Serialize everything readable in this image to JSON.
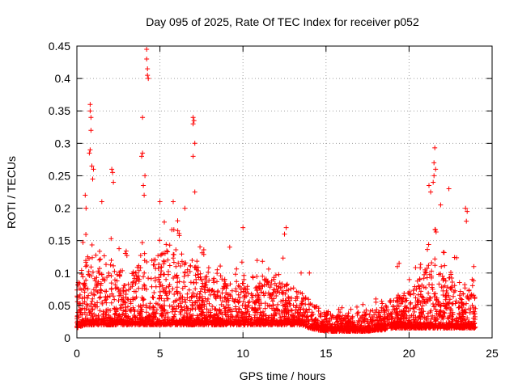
{
  "chart_data": {
    "type": "scatter",
    "title": "Day 095 of 2025, Rate Of TEC Index for receiver p052",
    "xlabel": "GPS time / hours",
    "ylabel": "ROTI / TECUs",
    "xlim": [
      0,
      25
    ],
    "ylim": [
      0,
      0.45
    ],
    "xticks": [
      "0",
      "5",
      "10",
      "15",
      "20",
      "25"
    ],
    "yticks": [
      "0",
      "0.05",
      "0.1",
      "0.15",
      "0.2",
      "0.25",
      "0.3",
      "0.35",
      "0.4",
      "0.45"
    ],
    "grid": true,
    "marker": "+",
    "series_color": "#ff0000",
    "envelope": {
      "hours": [
        0.0,
        0.5,
        1.0,
        1.5,
        2.0,
        2.5,
        3.0,
        3.5,
        4.0,
        4.5,
        5.0,
        5.5,
        6.0,
        6.5,
        7.0,
        7.5,
        8.0,
        8.5,
        9.0,
        9.5,
        10.0,
        10.5,
        11.0,
        11.5,
        12.0,
        12.5,
        13.0,
        13.5,
        14.0,
        14.5,
        15.0,
        15.5,
        16.0,
        16.5,
        17.0,
        17.5,
        18.0,
        18.5,
        19.0,
        19.5,
        20.0,
        20.5,
        21.0,
        21.5,
        22.0,
        22.5,
        23.0,
        23.5,
        24.0
      ],
      "typical_max": [
        0.09,
        0.12,
        0.14,
        0.12,
        0.13,
        0.11,
        0.1,
        0.11,
        0.12,
        0.12,
        0.13,
        0.14,
        0.14,
        0.13,
        0.12,
        0.11,
        0.11,
        0.1,
        0.09,
        0.09,
        0.1,
        0.1,
        0.1,
        0.09,
        0.1,
        0.09,
        0.08,
        0.07,
        0.06,
        0.05,
        0.04,
        0.035,
        0.035,
        0.035,
        0.04,
        0.04,
        0.045,
        0.05,
        0.06,
        0.07,
        0.07,
        0.09,
        0.11,
        0.13,
        0.12,
        0.1,
        0.09,
        0.08,
        0.07
      ],
      "floor": [
        0.015,
        0.02,
        0.02,
        0.02,
        0.02,
        0.02,
        0.02,
        0.02,
        0.02,
        0.02,
        0.02,
        0.02,
        0.02,
        0.02,
        0.02,
        0.02,
        0.02,
        0.02,
        0.02,
        0.02,
        0.02,
        0.02,
        0.02,
        0.02,
        0.02,
        0.02,
        0.02,
        0.02,
        0.015,
        0.012,
        0.01,
        0.01,
        0.01,
        0.01,
        0.01,
        0.01,
        0.012,
        0.012,
        0.015,
        0.015,
        0.015,
        0.015,
        0.015,
        0.015,
        0.015,
        0.015,
        0.015,
        0.015,
        0.015
      ]
    },
    "notable_points": [
      {
        "x": 4.2,
        "y": 0.445
      },
      {
        "x": 4.2,
        "y": 0.43
      },
      {
        "x": 4.25,
        "y": 0.415
      },
      {
        "x": 4.3,
        "y": 0.4
      },
      {
        "x": 4.25,
        "y": 0.405
      },
      {
        "x": 0.8,
        "y": 0.36
      },
      {
        "x": 0.8,
        "y": 0.35
      },
      {
        "x": 0.85,
        "y": 0.34
      },
      {
        "x": 0.85,
        "y": 0.32
      },
      {
        "x": 0.8,
        "y": 0.29
      },
      {
        "x": 0.75,
        "y": 0.285
      },
      {
        "x": 3.95,
        "y": 0.34
      },
      {
        "x": 3.95,
        "y": 0.285
      },
      {
        "x": 3.9,
        "y": 0.28
      },
      {
        "x": 7.0,
        "y": 0.34
      },
      {
        "x": 7.05,
        "y": 0.335
      },
      {
        "x": 7.0,
        "y": 0.33
      },
      {
        "x": 7.1,
        "y": 0.3
      },
      {
        "x": 7.0,
        "y": 0.28
      },
      {
        "x": 7.1,
        "y": 0.225
      },
      {
        "x": 0.9,
        "y": 0.265
      },
      {
        "x": 1.0,
        "y": 0.26
      },
      {
        "x": 0.95,
        "y": 0.245
      },
      {
        "x": 2.1,
        "y": 0.26
      },
      {
        "x": 2.15,
        "y": 0.255
      },
      {
        "x": 2.2,
        "y": 0.24
      },
      {
        "x": 4.0,
        "y": 0.235
      },
      {
        "x": 4.1,
        "y": 0.25
      },
      {
        "x": 4.05,
        "y": 0.22
      },
      {
        "x": 0.5,
        "y": 0.22
      },
      {
        "x": 0.55,
        "y": 0.2
      },
      {
        "x": 1.5,
        "y": 0.21
      },
      {
        "x": 5.0,
        "y": 0.21
      },
      {
        "x": 5.8,
        "y": 0.21
      },
      {
        "x": 6.5,
        "y": 0.2
      },
      {
        "x": 21.55,
        "y": 0.293
      },
      {
        "x": 21.5,
        "y": 0.27
      },
      {
        "x": 21.6,
        "y": 0.26
      },
      {
        "x": 21.5,
        "y": 0.25
      },
      {
        "x": 21.45,
        "y": 0.24
      },
      {
        "x": 21.2,
        "y": 0.235
      },
      {
        "x": 21.3,
        "y": 0.225
      },
      {
        "x": 21.9,
        "y": 0.205
      },
      {
        "x": 22.4,
        "y": 0.23
      },
      {
        "x": 23.4,
        "y": 0.2
      },
      {
        "x": 23.5,
        "y": 0.195
      },
      {
        "x": 23.45,
        "y": 0.18
      },
      {
        "x": 10.0,
        "y": 0.17
      },
      {
        "x": 12.6,
        "y": 0.17
      },
      {
        "x": 12.5,
        "y": 0.16
      },
      {
        "x": 9.2,
        "y": 0.14
      },
      {
        "x": 19.4,
        "y": 0.115
      },
      {
        "x": 19.3,
        "y": 0.11
      },
      {
        "x": 14.0,
        "y": 0.1
      },
      {
        "x": 13.5,
        "y": 0.1
      },
      {
        "x": 18.0,
        "y": 0.06
      },
      {
        "x": 23.9,
        "y": 0.11
      },
      {
        "x": 23.8,
        "y": 0.09
      }
    ]
  }
}
